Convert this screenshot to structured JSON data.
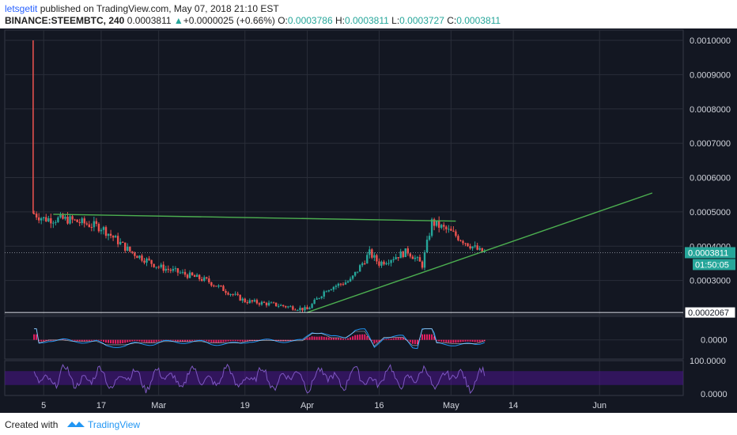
{
  "header": {
    "author": "letsgetit",
    "published": "published on TradingView.com, May 07, 2018 21:10 EST",
    "symbol": "BINANCE:STEEMBTC, 240",
    "last": "0.0003811",
    "arrow": "▲",
    "change": "+0.0000025 (+0.66%)",
    "o_label": "O:",
    "o_value": "0.0003786",
    "h_label": "H:",
    "h_value": "0.0003811",
    "l_label": "L:",
    "l_value": "0.0003727",
    "c_label": "C:",
    "c_value": "0.0003811"
  },
  "footer": {
    "created": "Created with",
    "brand": "TradingView"
  },
  "colors": {
    "background": "#131722",
    "grid": "#2a2e39",
    "up": "#26a69a",
    "down": "#ef5350",
    "trendline": "#4caf50",
    "macd_line": "#2196f3",
    "signal_line": "#ffffff",
    "histogram": "#e91e63",
    "rsi_line": "#7e57c2",
    "rsi_band": "#4a148c"
  },
  "chart_data": {
    "type": "candlestick",
    "symbol": "BINANCE:STEEMBTC",
    "interval": "240",
    "x_tick_labels": [
      "5",
      "17",
      "Mar",
      "19",
      "Apr",
      "16",
      "May",
      "14",
      "Jun"
    ],
    "y_tick_labels": [
      "0.0010000",
      "0.0009000",
      "0.0008000",
      "0.0007000",
      "0.0006000",
      "0.0005000",
      "0.0004000",
      "0.0003000"
    ],
    "ylim": [
      0.0002,
      0.00103
    ],
    "price_label": "0.0003811",
    "countdown_label": "01:50:05",
    "low_label": "0.0002067",
    "low_value": 0.0002067,
    "close_series": [
      [
        "5",
        0.00048
      ],
      [
        "17",
        0.000455
      ],
      [
        "Mar",
        0.00034
      ],
      [
        "19",
        0.000235
      ],
      [
        "Apr",
        0.000215
      ],
      [
        "16",
        0.00035
      ],
      [
        "May",
        0.00044
      ],
      [
        "May 07",
        0.0003811
      ]
    ],
    "launch_spike_high": 0.001,
    "trendlines": [
      {
        "name": "resistance",
        "from": [
          "Feb 07",
          0.000493
        ],
        "to": [
          "May 02",
          0.000473
        ]
      },
      {
        "name": "support",
        "from": [
          "Apr 01",
          0.000207
        ],
        "to": [
          "Jun 12",
          0.000555
        ]
      }
    ],
    "macd": {
      "y_tick_labels": [
        "0.0000"
      ],
      "zero": 0
    },
    "rsi": {
      "y_tick_labels": [
        "100.0000",
        "0.0000"
      ],
      "band": [
        30,
        70
      ]
    }
  }
}
